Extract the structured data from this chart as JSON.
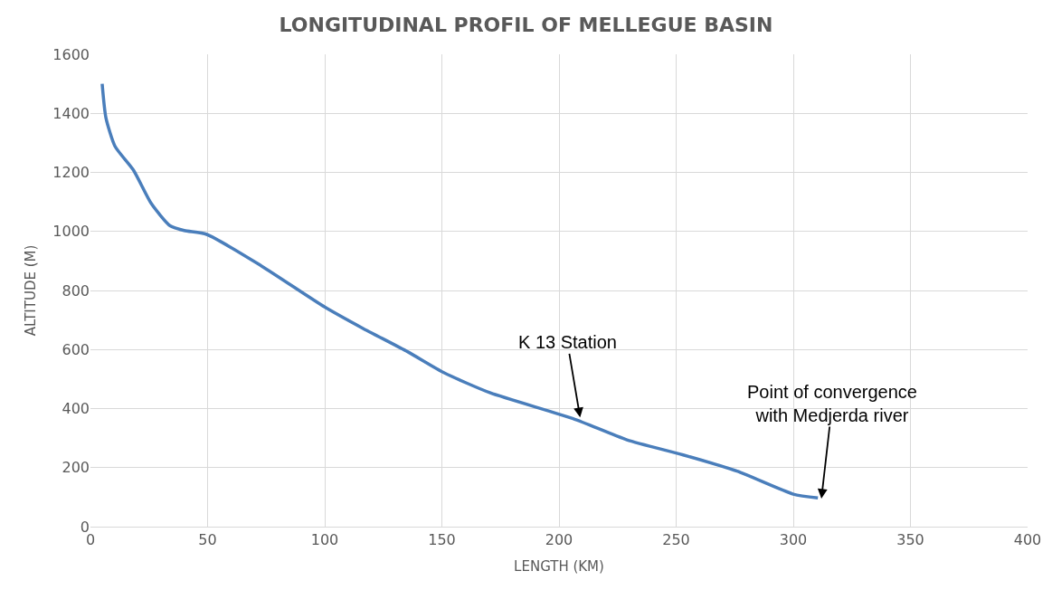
{
  "chart_data": {
    "type": "line",
    "title": "LONGITUDINAL PROFIL OF MELLEGUE BASIN",
    "xlabel": "LENGTH (KM)",
    "ylabel": "ALTITUDE (M)",
    "x": [
      5,
      6.6,
      10.5,
      18.4,
      26,
      34,
      40,
      49.6,
      73,
      100,
      116,
      135.5,
      151,
      170.7,
      206,
      229,
      253,
      276,
      300,
      310.5
    ],
    "series": [
      {
        "color": "#4a7ebb",
        "values": [
          1500,
          1385,
          1288,
          1207,
          1094,
          1019,
          1003,
          990,
          883,
          744,
          673,
          592,
          521,
          453,
          366,
          294,
          243,
          188,
          110,
          97
        ]
      }
    ],
    "xlim": [
      0,
      400
    ],
    "xticks": [
      0,
      50,
      100,
      150,
      200,
      250,
      300,
      350,
      400
    ],
    "ylim": [
      0,
      1600
    ],
    "yticks": [
      0,
      200,
      400,
      600,
      800,
      1000,
      1200,
      1400,
      1600
    ],
    "grid": true,
    "legend": false,
    "marker": "none",
    "line_style": "solid",
    "annotations": [
      {
        "text": "K 13 Station",
        "x": 209,
        "y": 370
      },
      {
        "text": "Point of convergence\nwith Medjerda river",
        "x": 312,
        "y": 95
      }
    ]
  }
}
